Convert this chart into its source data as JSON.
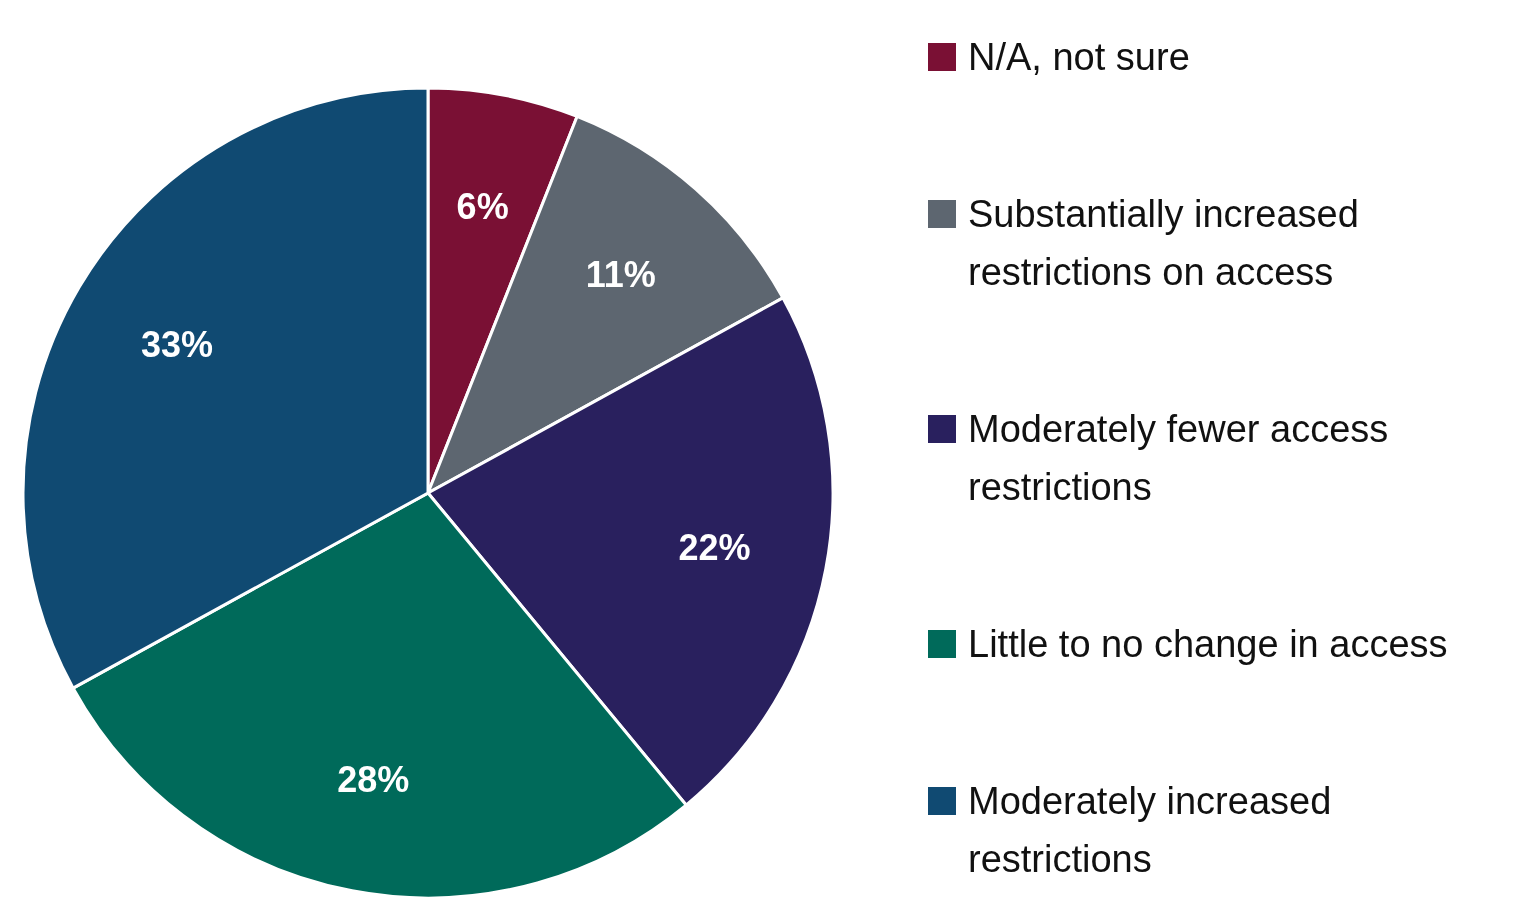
{
  "chart_data": {
    "type": "pie",
    "categories": [
      "N/A, not sure",
      "Substantially increased restrictions on access",
      "Moderately fewer access restrictions",
      "Little to no change in access",
      "Moderately increased restrictions"
    ],
    "values": [
      6,
      11,
      22,
      28,
      33
    ],
    "colors": [
      "#7a1034",
      "#5d6670",
      "#29205e",
      "#006a5a",
      "#104a72"
    ],
    "value_labels": [
      "6%",
      "11%",
      "22%",
      "28%",
      "33%"
    ],
    "legend": "right"
  }
}
